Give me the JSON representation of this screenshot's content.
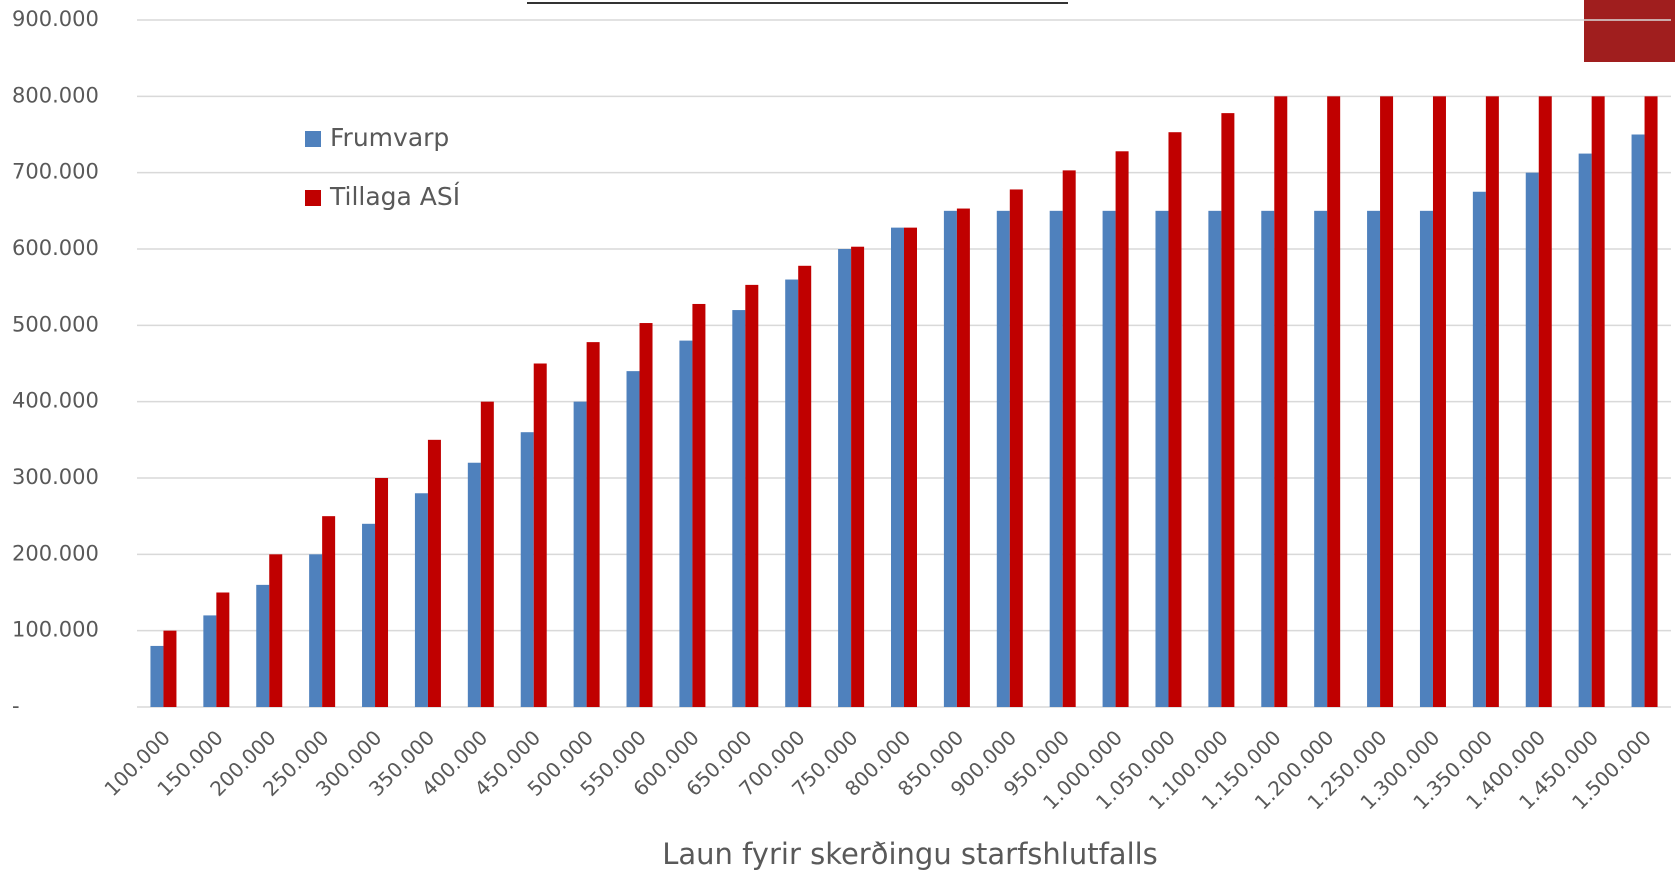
{
  "chart_data": {
    "type": "bar",
    "x_label": "Laun fyrir skerðingu starfshlutfalls",
    "categories": [
      "100.000",
      "150.000",
      "200.000",
      "250.000",
      "300.000",
      "350.000",
      "400.000",
      "450.000",
      "500.000",
      "550.000",
      "600.000",
      "650.000",
      "700.000",
      "750.000",
      "800.000",
      "850.000",
      "900.000",
      "950.000",
      "1.000.000",
      "1.050.000",
      "1.100.000",
      "1.150.000",
      "1.200.000",
      "1.250.000",
      "1.300.000",
      "1.350.000",
      "1.400.000",
      "1.450.000",
      "1.500.000"
    ],
    "series": [
      {
        "name": "Frumvarp",
        "color": "#4f81bd",
        "values": [
          80000,
          120000,
          160000,
          200000,
          240000,
          280000,
          320000,
          360000,
          400000,
          440000,
          480000,
          520000,
          560000,
          600000,
          628000,
          650000,
          650000,
          650000,
          650000,
          650000,
          650000,
          650000,
          650000,
          650000,
          650000,
          675000,
          700000,
          725000,
          750000
        ]
      },
      {
        "name": "Tillaga ASÍ",
        "color": "#c00000",
        "values": [
          100000,
          150000,
          200000,
          250000,
          300000,
          350000,
          400000,
          450000,
          478000,
          503000,
          528000,
          553000,
          578000,
          603000,
          628000,
          653000,
          678000,
          703000,
          728000,
          753000,
          778000,
          800000,
          800000,
          800000,
          800000,
          800000,
          800000,
          800000,
          800000
        ]
      }
    ],
    "ylim": [
      0,
      900000
    ],
    "yticks": [
      {
        "value": 0,
        "label": "-"
      },
      {
        "value": 100000,
        "label": "100.000"
      },
      {
        "value": 200000,
        "label": "200.000"
      },
      {
        "value": 300000,
        "label": "300.000"
      },
      {
        "value": 400000,
        "label": "400.000"
      },
      {
        "value": 500000,
        "label": "500.000"
      },
      {
        "value": 600000,
        "label": "600.000"
      },
      {
        "value": 700000,
        "label": "700.000"
      },
      {
        "value": 800000,
        "label": "800.000"
      },
      {
        "value": 900000,
        "label": "900.000"
      }
    ],
    "grid": true
  }
}
